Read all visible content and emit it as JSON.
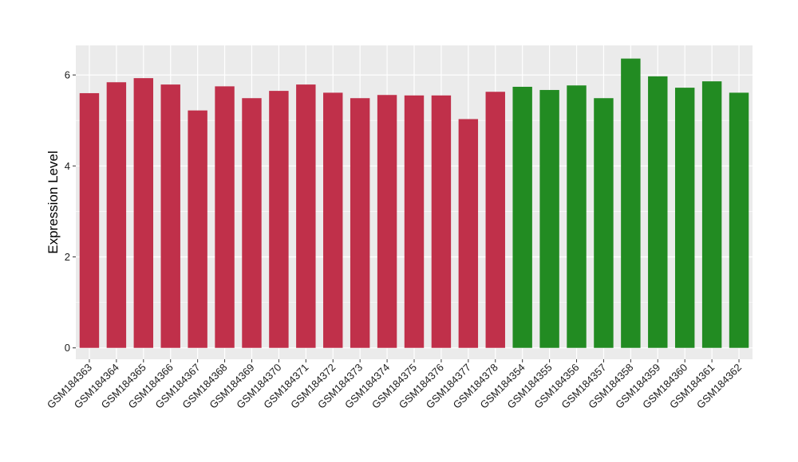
{
  "chart_data": {
    "type": "bar",
    "xlabel": "",
    "ylabel": "Expression Level",
    "ylim": [
      -0.25,
      6.65
    ],
    "yticks": [
      0,
      2,
      4,
      6
    ],
    "grid": true,
    "legend": "none",
    "colors": {
      "group_a": "#c0304a",
      "group_b": "#228b22",
      "panel_bg": "#ebebeb",
      "grid": "#ffffff"
    },
    "categories": [
      "GSM184363",
      "GSM184364",
      "GSM184365",
      "GSM184366",
      "GSM184367",
      "GSM184368",
      "GSM184369",
      "GSM184370",
      "GSM184371",
      "GSM184372",
      "GSM184373",
      "GSM184374",
      "GSM184375",
      "GSM184376",
      "GSM184377",
      "GSM184378",
      "GSM184354",
      "GSM184355",
      "GSM184356",
      "GSM184357",
      "GSM184358",
      "GSM184359",
      "GSM184360",
      "GSM184361",
      "GSM184362"
    ],
    "values": [
      5.6,
      5.84,
      5.93,
      5.79,
      5.22,
      5.75,
      5.49,
      5.65,
      5.79,
      5.61,
      5.49,
      5.56,
      5.55,
      5.55,
      5.03,
      5.63,
      5.74,
      5.67,
      5.77,
      5.49,
      6.36,
      5.97,
      5.72,
      5.86,
      5.61
    ],
    "groups": [
      "a",
      "a",
      "a",
      "a",
      "a",
      "a",
      "a",
      "a",
      "a",
      "a",
      "a",
      "a",
      "a",
      "a",
      "a",
      "a",
      "b",
      "b",
      "b",
      "b",
      "b",
      "b",
      "b",
      "b",
      "b"
    ]
  }
}
